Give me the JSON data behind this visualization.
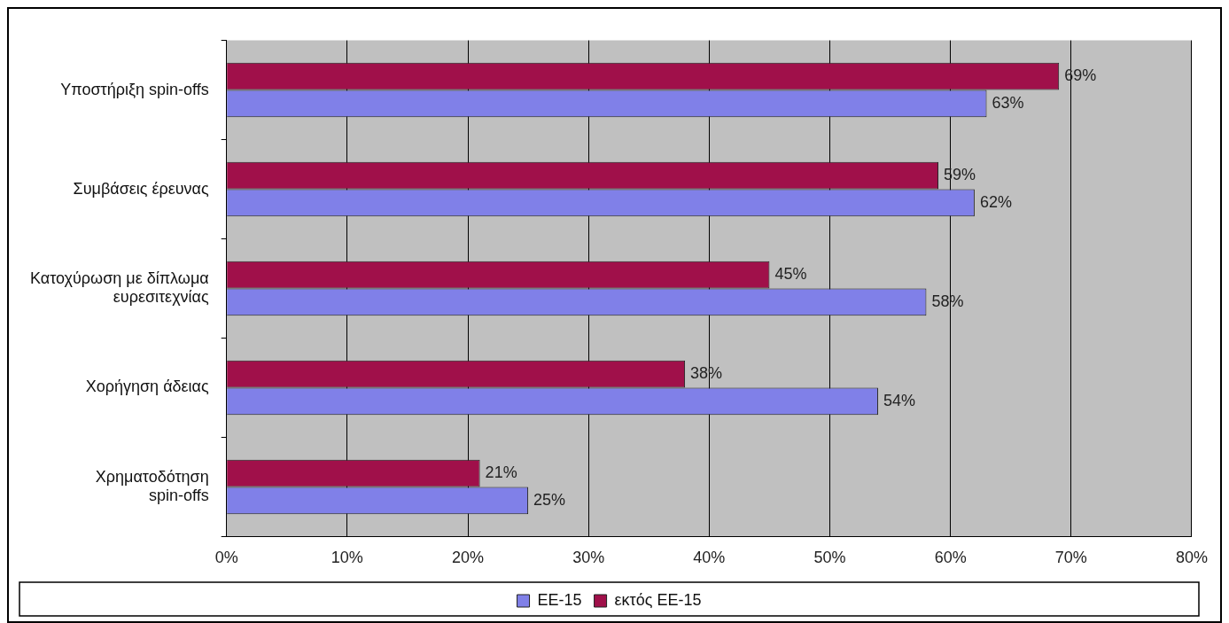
{
  "chart_data": {
    "type": "bar",
    "orientation": "horizontal",
    "categories": [
      "Υποστήριξη spin-offs",
      "Συμβάσεις έρευνας",
      "Κατοχύρωση με δίπλωμα ευρεσιτεχνίας",
      "Χορήγηση άδειας",
      "Χρηματοδότηση spin-offs"
    ],
    "series": [
      {
        "name": "ΕΕ-15",
        "color": "#8080e8",
        "values": [
          63,
          62,
          58,
          54,
          25
        ],
        "value_labels": [
          "63%",
          "62%",
          "58%",
          "54%",
          "25%"
        ]
      },
      {
        "name": "εκτός ΕΕ-15",
        "color": "#a0104a",
        "values": [
          69,
          59,
          45,
          38,
          21
        ],
        "value_labels": [
          "69%",
          "59%",
          "45%",
          "38%",
          "21%"
        ]
      }
    ],
    "xlim": [
      0,
      80
    ],
    "xticks": [
      {
        "value": 0,
        "label": "0%"
      },
      {
        "value": 10,
        "label": "10%"
      },
      {
        "value": 20,
        "label": "20%"
      },
      {
        "value": 30,
        "label": "30%"
      },
      {
        "value": 40,
        "label": "40%"
      },
      {
        "value": 50,
        "label": "50%"
      },
      {
        "value": 60,
        "label": "60%"
      },
      {
        "value": 70,
        "label": "70%"
      },
      {
        "value": 80,
        "label": "80%"
      }
    ],
    "grid": "x",
    "legend": "bottom"
  }
}
